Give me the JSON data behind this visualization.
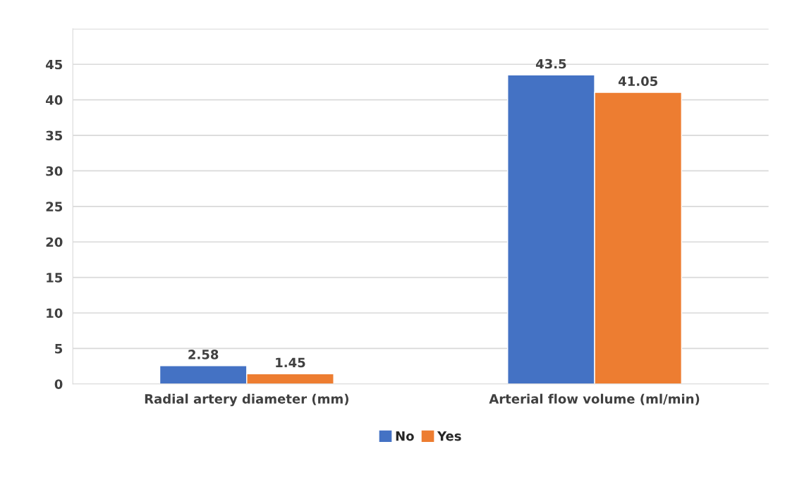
{
  "chart_data": {
    "type": "bar",
    "categories": [
      "Radial artery diameter (mm)",
      "Arterial flow volume (ml/min)"
    ],
    "series": [
      {
        "name": "No",
        "color": "#4472c4",
        "values": [
          2.58,
          43.5
        ]
      },
      {
        "name": "Yes",
        "color": "#ed7d31",
        "values": [
          1.45,
          41.05
        ]
      }
    ],
    "ylim": [
      0,
      50
    ],
    "yticks": [
      0,
      5,
      10,
      15,
      20,
      25,
      30,
      35,
      40,
      45,
      {
        "value": 50,
        "label": null
      }
    ],
    "grid": "y",
    "legend": "bottom",
    "data_labels": true
  }
}
